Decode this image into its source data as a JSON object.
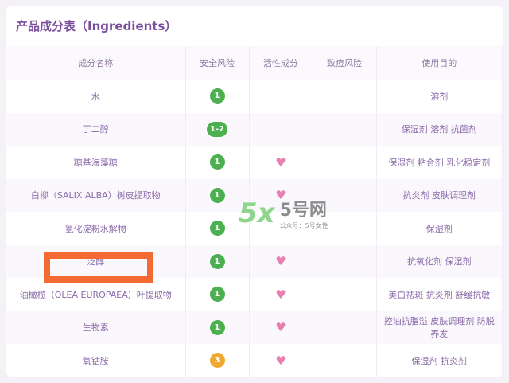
{
  "title": "产品成分表（Ingredients）",
  "columns": [
    "成分名称",
    "安全风险",
    "活性成分",
    "致痘风险",
    "使用目的"
  ],
  "rows": [
    {
      "name": "水",
      "risk": "1",
      "risk_color": "#4caf50",
      "active": false,
      "acne": "",
      "purpose": "溶剂"
    },
    {
      "name": "丁二醇",
      "risk": "1-2",
      "risk_color": "#4caf50",
      "active": false,
      "acne": "",
      "purpose": "保湿剂 溶剂 抗菌剂"
    },
    {
      "name": "糖基海藻糖",
      "risk": "1",
      "risk_color": "#4caf50",
      "active": true,
      "acne": "",
      "purpose": "保湿剂 粘合剂 乳化稳定剂"
    },
    {
      "name": "白柳（SALIX ALBA）树皮提取物",
      "risk": "1",
      "risk_color": "#4caf50",
      "active": true,
      "acne": "",
      "purpose": "抗炎剂 皮肤调理剂"
    },
    {
      "name": "氢化淀粉水解物",
      "risk": "1",
      "risk_color": "#4caf50",
      "active": false,
      "acne": "",
      "purpose": "保湿剂"
    },
    {
      "name": "泛醇",
      "risk": "1",
      "risk_color": "#4caf50",
      "active": true,
      "acne": "",
      "purpose": "抗氧化剂 保湿剂"
    },
    {
      "name": "油橄榄（OLEA EUROPAEA）叶提取物",
      "risk": "1",
      "risk_color": "#4caf50",
      "active": true,
      "acne": "",
      "purpose": "美白祛斑 抗炎剂 舒缓抗敏"
    },
    {
      "name": "生物素",
      "risk": "1",
      "risk_color": "#4caf50",
      "active": true,
      "acne": "",
      "purpose": "控油抗脂溢 皮肤调理剂 防脱养发"
    },
    {
      "name": "氧钴胺",
      "risk": "3",
      "risk_color": "#f0a830",
      "active": true,
      "acne": "",
      "purpose": "保湿剂 抗炎剂"
    }
  ],
  "heart_icon": "♥",
  "watermark": {
    "logo": "5x",
    "name": "5号网",
    "sub": "公众号：5号女性"
  },
  "highlight_color": "#f36a32"
}
